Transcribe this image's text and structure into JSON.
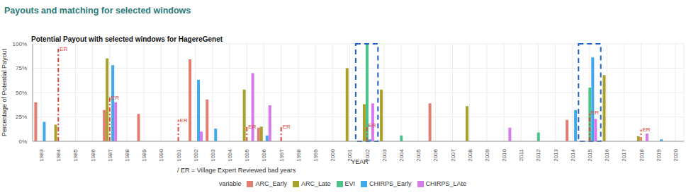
{
  "header": "Payouts and matching for selected windows",
  "chart_data": {
    "type": "bar",
    "title": "Potential Payout with selected windows for HagereGenet",
    "x_label": "YEAR",
    "y_label": "Percentage of Potential Payout",
    "caption": "/ ER = Village Expert Reviewed bad years",
    "legend_title": "variable",
    "legend": "bottom",
    "grid": true,
    "categories": [
      "1983",
      "1984",
      "1985",
      "1986",
      "1987",
      "1988",
      "1989",
      "1990",
      "1991",
      "1992",
      "1993",
      "1994",
      "1995",
      "1996",
      "1997",
      "1998",
      "1999",
      "2000",
      "2001",
      "2002",
      "2003",
      "2004",
      "2005",
      "2006",
      "2007",
      "2008",
      "2009",
      "2010",
      "2011",
      "2012",
      "2013",
      "2014",
      "2015",
      "2016",
      "2017",
      "2018",
      "2019",
      "2020"
    ],
    "series": [
      {
        "name": "ARC_Early",
        "color": "#e27d72",
        "values": [
          40,
          0,
          0,
          0,
          32,
          0,
          28,
          0,
          0,
          84,
          43,
          0,
          0,
          14,
          0,
          0,
          0,
          0,
          0,
          0,
          0,
          0,
          0,
          39,
          0,
          0,
          0,
          0,
          0,
          0,
          0,
          22,
          0,
          0,
          0,
          0,
          0,
          0
        ]
      },
      {
        "name": "ARC_Late",
        "color": "#a8a12a",
        "values": [
          0,
          17,
          0,
          0,
          85,
          0,
          0,
          0,
          0,
          0,
          0,
          0,
          53,
          15,
          0,
          0,
          0,
          0,
          75,
          38,
          53,
          0,
          0,
          0,
          0,
          36,
          0,
          0,
          0,
          0,
          0,
          0,
          0,
          68,
          0,
          5,
          0,
          0
        ]
      },
      {
        "name": "EVI",
        "color": "#4cc38a",
        "values": [
          0,
          0,
          0,
          0,
          0,
          0,
          0,
          0,
          0,
          0,
          0,
          0,
          0,
          0,
          0,
          0,
          0,
          0,
          0,
          100,
          0,
          6,
          0,
          0,
          0,
          0,
          0,
          0,
          0,
          9,
          0,
          0,
          55,
          0,
          0,
          0,
          0,
          0
        ]
      },
      {
        "name": "CHIRPS_Early",
        "color": "#3fa9e9",
        "values": [
          20,
          0,
          0,
          0,
          78,
          0,
          0,
          0,
          0,
          63,
          13,
          0,
          0,
          6,
          0,
          0,
          0,
          0,
          0,
          2,
          0,
          0,
          0,
          0,
          0,
          0,
          0,
          0,
          0,
          0,
          0,
          32,
          86,
          0,
          0,
          0,
          2,
          0
        ]
      },
      {
        "name": "CHIRPS_LAte",
        "color": "#d879ec",
        "values": [
          0,
          0,
          0,
          0,
          40,
          0,
          0,
          0,
          0,
          10,
          0,
          0,
          70,
          37,
          0,
          0,
          0,
          0,
          0,
          39,
          0,
          0,
          0,
          0,
          0,
          0,
          0,
          14,
          0,
          0,
          0,
          0,
          23,
          0,
          0,
          8,
          0,
          0
        ]
      }
    ],
    "ylim": [
      0,
      100
    ],
    "yticks": [
      {
        "value": 0,
        "label": "0%"
      },
      {
        "value": 25,
        "label": "25%"
      },
      {
        "value": 50,
        "label": "50%"
      },
      {
        "value": 75,
        "label": "75%"
      },
      {
        "value": 100,
        "label": "100%"
      }
    ],
    "er_markers": {
      "label": "ER",
      "years": [
        "1984",
        "1987",
        "1991",
        "1995",
        "1997",
        "2002",
        "2015",
        "2018"
      ],
      "values": [
        95,
        45,
        22,
        15,
        15,
        17,
        30,
        12
      ]
    },
    "highlighted_years": [
      "2002",
      "2015"
    ]
  }
}
